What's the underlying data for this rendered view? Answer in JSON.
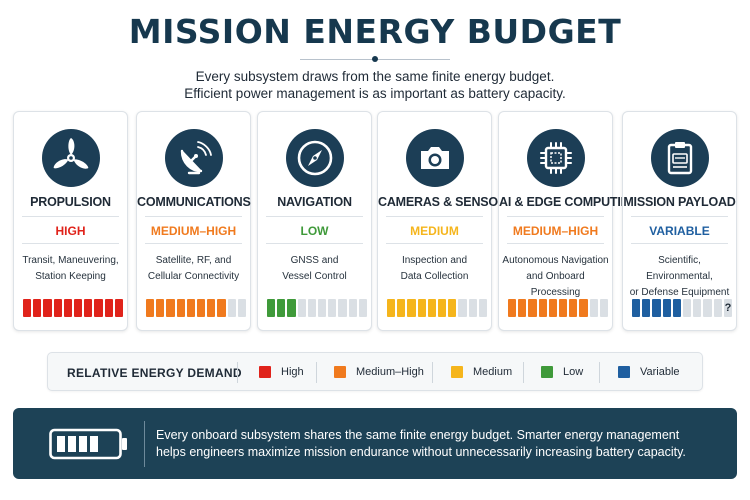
{
  "title": "MISSION ENERGY BUDGET",
  "subtitle_line1": "Every subsystem draws from the same finite energy budget.",
  "subtitle_line2": "Efficient power management is as important as battery capacity.",
  "colors": {
    "high": "#e0231b",
    "medium_high": "#f07a1e",
    "medium": "#f5b51c",
    "low": "#3f9a3a",
    "variable": "#1f5fa0",
    "navy": "#1c3e56"
  },
  "cards": [
    {
      "name": "PROPULSION",
      "icon": "propeller-icon",
      "level": "HIGH",
      "color": "#e0231b",
      "desc_line1": "Transit, Maneuvering,",
      "desc_line2": "Station Keeping",
      "filled": 10,
      "total": 10
    },
    {
      "name": "COMMUNICATIONS",
      "icon": "satellite-dish-icon",
      "level": "MEDIUM–HIGH",
      "color": "#f07a1e",
      "desc_line1": "Satellite, RF, and",
      "desc_line2": "Cellular Connectivity",
      "filled": 8,
      "total": 10
    },
    {
      "name": "NAVIGATION",
      "icon": "compass-icon",
      "level": "LOW",
      "color": "#3f9a3a",
      "desc_line1": "GNSS and",
      "desc_line2": "Vessel Control",
      "filled": 3,
      "total": 10
    },
    {
      "name": "CAMERAS & SENSORS",
      "icon": "camera-icon",
      "level": "MEDIUM",
      "color": "#f5b51c",
      "desc_line1": "Inspection and",
      "desc_line2": "Data Collection",
      "filled": 7,
      "total": 10
    },
    {
      "name": "AI & EDGE COMPUTING",
      "icon": "chip-icon",
      "level": "MEDIUM–HIGH",
      "color": "#f07a1e",
      "desc_line1": "Autonomous Navigation",
      "desc_line2": "and Onboard Processing",
      "filled": 8,
      "total": 10
    },
    {
      "name": "MISSION PAYLOAD",
      "icon": "clipboard-icon",
      "level": "VARIABLE",
      "color": "#1f5fa0",
      "desc_line1": "Scientific, Environmental,",
      "desc_line2": "or Defense Equipment",
      "filled": 5,
      "total": 10,
      "unknown_marker": "?"
    }
  ],
  "legend": {
    "title": "RELATIVE ENERGY DEMAND",
    "items": [
      {
        "label": "High",
        "color": "#e0231b"
      },
      {
        "label": "Medium–High",
        "color": "#f07a1e"
      },
      {
        "label": "Medium",
        "color": "#f5b51c"
      },
      {
        "label": "Low",
        "color": "#3f9a3a"
      },
      {
        "label": "Variable",
        "color": "#1f5fa0"
      }
    ]
  },
  "footer": {
    "icon": "battery-icon",
    "line1": "Every onboard subsystem shares the same finite energy budget. Smarter energy management",
    "line2": "helps engineers maximize mission endurance without unnecessarily increasing battery capacity."
  }
}
